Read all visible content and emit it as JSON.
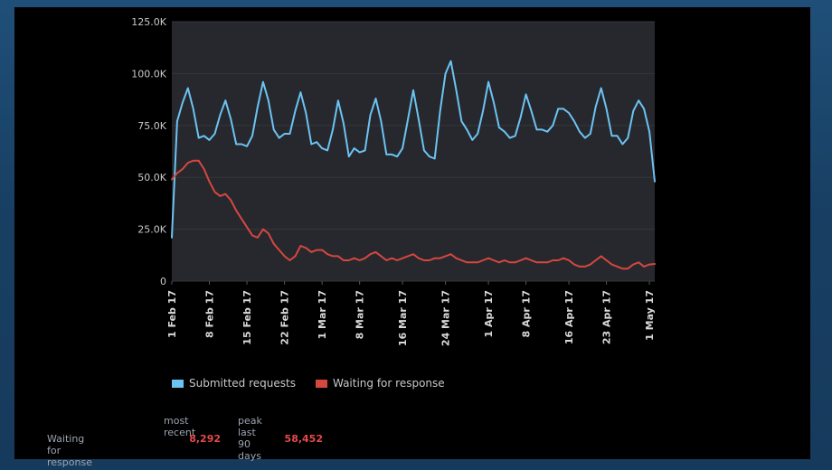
{
  "colors": {
    "plot_bg": "#26282d",
    "grid": "#34363c",
    "submitted": "#6cc3f2",
    "waiting": "#d6473f",
    "stat_value": "#e34a4a"
  },
  "legend": {
    "submitted": "Submitted requests",
    "waiting": "Waiting for response"
  },
  "stats": {
    "header_recent": "most recent",
    "header_peak": "peak last 90 days",
    "row_label": "Waiting for response",
    "recent_value": "8,292",
    "peak_value": "58,452"
  },
  "chart_data": {
    "type": "line",
    "x_start": "2017-02-01",
    "x_end": "2017-05-01",
    "y_range": [
      0,
      125000
    ],
    "y_ticks": [
      0,
      25000,
      50000,
      75000,
      100000,
      125000
    ],
    "y_tick_labels": [
      "0",
      "25.0K",
      "50.0K",
      "75.0K",
      "100.0K",
      "125.0K"
    ],
    "x_ticks": [
      {
        "date": "2017-02-01",
        "label": "1 Feb 17"
      },
      {
        "date": "2017-02-08",
        "label": "8 Feb 17"
      },
      {
        "date": "2017-02-15",
        "label": "15 Feb 17"
      },
      {
        "date": "2017-02-22",
        "label": "22 Feb 17"
      },
      {
        "date": "2017-03-01",
        "label": "1 Mar 17"
      },
      {
        "date": "2017-03-08",
        "label": "8 Mar 17"
      },
      {
        "date": "2017-03-16",
        "label": "16 Mar 17"
      },
      {
        "date": "2017-03-24",
        "label": "24 Mar 17"
      },
      {
        "date": "2017-04-01",
        "label": "1 Apr 17"
      },
      {
        "date": "2017-04-08",
        "label": "8 Apr 17"
      },
      {
        "date": "2017-04-16",
        "label": "16 Apr 17"
      },
      {
        "date": "2017-04-23",
        "label": "23 Apr 17"
      },
      {
        "date": "2017-05-01",
        "label": "1 May 17"
      }
    ],
    "grid": true,
    "legend_position": "bottom-left",
    "series": [
      {
        "name": "Submitted requests",
        "color": "#6cc3f2",
        "points": [
          [
            "2017-02-01",
            21000
          ],
          [
            "2017-02-02",
            77000
          ],
          [
            "2017-02-03",
            86000
          ],
          [
            "2017-02-04",
            93000
          ],
          [
            "2017-02-05",
            83000
          ],
          [
            "2017-02-06",
            69000
          ],
          [
            "2017-02-07",
            70000
          ],
          [
            "2017-02-08",
            68000
          ],
          [
            "2017-02-09",
            71000
          ],
          [
            "2017-02-10",
            80000
          ],
          [
            "2017-02-11",
            87000
          ],
          [
            "2017-02-12",
            78000
          ],
          [
            "2017-02-13",
            66000
          ],
          [
            "2017-02-14",
            66000
          ],
          [
            "2017-02-15",
            65000
          ],
          [
            "2017-02-16",
            70000
          ],
          [
            "2017-02-17",
            84000
          ],
          [
            "2017-02-18",
            96000
          ],
          [
            "2017-02-19",
            87000
          ],
          [
            "2017-02-20",
            73000
          ],
          [
            "2017-02-21",
            69000
          ],
          [
            "2017-02-22",
            71000
          ],
          [
            "2017-02-23",
            71000
          ],
          [
            "2017-02-24",
            82000
          ],
          [
            "2017-02-25",
            91000
          ],
          [
            "2017-02-26",
            81000
          ],
          [
            "2017-02-27",
            66000
          ],
          [
            "2017-02-28",
            67000
          ],
          [
            "2017-03-01",
            64000
          ],
          [
            "2017-03-02",
            63000
          ],
          [
            "2017-03-03",
            73000
          ],
          [
            "2017-03-04",
            87000
          ],
          [
            "2017-03-05",
            76000
          ],
          [
            "2017-03-06",
            60000
          ],
          [
            "2017-03-07",
            64000
          ],
          [
            "2017-03-08",
            62000
          ],
          [
            "2017-03-09",
            63000
          ],
          [
            "2017-03-10",
            80000
          ],
          [
            "2017-03-11",
            88000
          ],
          [
            "2017-03-12",
            77000
          ],
          [
            "2017-03-13",
            61000
          ],
          [
            "2017-03-14",
            61000
          ],
          [
            "2017-03-15",
            60000
          ],
          [
            "2017-03-16",
            64000
          ],
          [
            "2017-03-17",
            78000
          ],
          [
            "2017-03-18",
            92000
          ],
          [
            "2017-03-19",
            78000
          ],
          [
            "2017-03-20",
            63000
          ],
          [
            "2017-03-21",
            60000
          ],
          [
            "2017-03-22",
            59000
          ],
          [
            "2017-03-23",
            82000
          ],
          [
            "2017-03-24",
            100000
          ],
          [
            "2017-03-25",
            106000
          ],
          [
            "2017-03-26",
            92000
          ],
          [
            "2017-03-27",
            77000
          ],
          [
            "2017-03-28",
            73000
          ],
          [
            "2017-03-29",
            68000
          ],
          [
            "2017-03-30",
            71000
          ],
          [
            "2017-03-31",
            82000
          ],
          [
            "2017-04-01",
            96000
          ],
          [
            "2017-04-02",
            86000
          ],
          [
            "2017-04-03",
            74000
          ],
          [
            "2017-04-04",
            72000
          ],
          [
            "2017-04-05",
            69000
          ],
          [
            "2017-04-06",
            70000
          ],
          [
            "2017-04-07",
            79000
          ],
          [
            "2017-04-08",
            90000
          ],
          [
            "2017-04-09",
            82000
          ],
          [
            "2017-04-10",
            73000
          ],
          [
            "2017-04-11",
            73000
          ],
          [
            "2017-04-12",
            72000
          ],
          [
            "2017-04-13",
            75000
          ],
          [
            "2017-04-14",
            83000
          ],
          [
            "2017-04-15",
            83000
          ],
          [
            "2017-04-16",
            81000
          ],
          [
            "2017-04-17",
            77000
          ],
          [
            "2017-04-18",
            72000
          ],
          [
            "2017-04-19",
            69000
          ],
          [
            "2017-04-20",
            71000
          ],
          [
            "2017-04-21",
            84000
          ],
          [
            "2017-04-22",
            93000
          ],
          [
            "2017-04-23",
            83000
          ],
          [
            "2017-04-24",
            70000
          ],
          [
            "2017-04-25",
            70000
          ],
          [
            "2017-04-26",
            66000
          ],
          [
            "2017-04-27",
            69000
          ],
          [
            "2017-04-28",
            82000
          ],
          [
            "2017-04-29",
            87000
          ],
          [
            "2017-04-30",
            83000
          ],
          [
            "2017-05-01",
            72000
          ],
          [
            "2017-05-02",
            48000
          ]
        ]
      },
      {
        "name": "Waiting for response",
        "color": "#d6473f",
        "points": [
          [
            "2017-02-01",
            49000
          ],
          [
            "2017-02-02",
            52000
          ],
          [
            "2017-02-03",
            54000
          ],
          [
            "2017-02-04",
            57000
          ],
          [
            "2017-02-05",
            58000
          ],
          [
            "2017-02-06",
            58000
          ],
          [
            "2017-02-07",
            54000
          ],
          [
            "2017-02-08",
            48000
          ],
          [
            "2017-02-09",
            43000
          ],
          [
            "2017-02-10",
            41000
          ],
          [
            "2017-02-11",
            42000
          ],
          [
            "2017-02-12",
            39000
          ],
          [
            "2017-02-13",
            34000
          ],
          [
            "2017-02-14",
            30000
          ],
          [
            "2017-02-15",
            26000
          ],
          [
            "2017-02-16",
            22000
          ],
          [
            "2017-02-17",
            21000
          ],
          [
            "2017-02-18",
            25000
          ],
          [
            "2017-02-19",
            23000
          ],
          [
            "2017-02-20",
            18000
          ],
          [
            "2017-02-21",
            15000
          ],
          [
            "2017-02-22",
            12000
          ],
          [
            "2017-02-23",
            10000
          ],
          [
            "2017-02-24",
            12000
          ],
          [
            "2017-02-25",
            17000
          ],
          [
            "2017-02-26",
            16000
          ],
          [
            "2017-02-27",
            14000
          ],
          [
            "2017-02-28",
            15000
          ],
          [
            "2017-03-01",
            15000
          ],
          [
            "2017-03-02",
            13000
          ],
          [
            "2017-03-03",
            12000
          ],
          [
            "2017-03-04",
            12000
          ],
          [
            "2017-03-05",
            10000
          ],
          [
            "2017-03-06",
            10000
          ],
          [
            "2017-03-07",
            11000
          ],
          [
            "2017-03-08",
            10000
          ],
          [
            "2017-03-09",
            11000
          ],
          [
            "2017-03-10",
            13000
          ],
          [
            "2017-03-11",
            14000
          ],
          [
            "2017-03-12",
            12000
          ],
          [
            "2017-03-13",
            10000
          ],
          [
            "2017-03-14",
            11000
          ],
          [
            "2017-03-15",
            10000
          ],
          [
            "2017-03-16",
            11000
          ],
          [
            "2017-03-17",
            12000
          ],
          [
            "2017-03-18",
            13000
          ],
          [
            "2017-03-19",
            11000
          ],
          [
            "2017-03-20",
            10000
          ],
          [
            "2017-03-21",
            10000
          ],
          [
            "2017-03-22",
            11000
          ],
          [
            "2017-03-23",
            11000
          ],
          [
            "2017-03-24",
            12000
          ],
          [
            "2017-03-25",
            13000
          ],
          [
            "2017-03-26",
            11000
          ],
          [
            "2017-03-27",
            10000
          ],
          [
            "2017-03-28",
            9000
          ],
          [
            "2017-03-29",
            9000
          ],
          [
            "2017-03-30",
            9000
          ],
          [
            "2017-03-31",
            10000
          ],
          [
            "2017-04-01",
            11000
          ],
          [
            "2017-04-02",
            10000
          ],
          [
            "2017-04-03",
            9000
          ],
          [
            "2017-04-04",
            10000
          ],
          [
            "2017-04-05",
            9000
          ],
          [
            "2017-04-06",
            9000
          ],
          [
            "2017-04-07",
            10000
          ],
          [
            "2017-04-08",
            11000
          ],
          [
            "2017-04-09",
            10000
          ],
          [
            "2017-04-10",
            9000
          ],
          [
            "2017-04-11",
            9000
          ],
          [
            "2017-04-12",
            9000
          ],
          [
            "2017-04-13",
            10000
          ],
          [
            "2017-04-14",
            10000
          ],
          [
            "2017-04-15",
            11000
          ],
          [
            "2017-04-16",
            10000
          ],
          [
            "2017-04-17",
            8000
          ],
          [
            "2017-04-18",
            7000
          ],
          [
            "2017-04-19",
            7000
          ],
          [
            "2017-04-20",
            8000
          ],
          [
            "2017-04-21",
            10000
          ],
          [
            "2017-04-22",
            12000
          ],
          [
            "2017-04-23",
            10000
          ],
          [
            "2017-04-24",
            8000
          ],
          [
            "2017-04-25",
            7000
          ],
          [
            "2017-04-26",
            6000
          ],
          [
            "2017-04-27",
            6000
          ],
          [
            "2017-04-28",
            8000
          ],
          [
            "2017-04-29",
            9000
          ],
          [
            "2017-04-30",
            7000
          ],
          [
            "2017-05-01",
            8000
          ],
          [
            "2017-05-02",
            8292
          ]
        ]
      }
    ]
  }
}
